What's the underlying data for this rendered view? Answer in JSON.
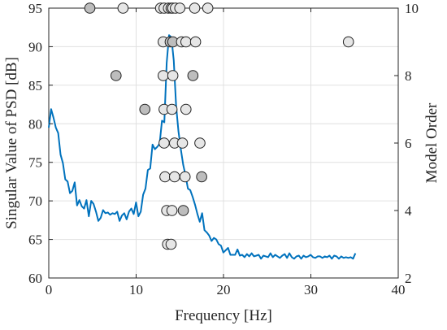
{
  "chart_data": {
    "type": "line",
    "xlabel": "Frequency [Hz]",
    "ylabel": "Singular Value of PSD [dB]",
    "y2label": "Model Order",
    "xlim": [
      0,
      40
    ],
    "ylim": [
      60,
      95
    ],
    "y2lim": [
      2,
      10
    ],
    "xticks": [
      0,
      10,
      20,
      30,
      40
    ],
    "yticks": [
      60,
      65,
      70,
      75,
      80,
      85,
      90,
      95
    ],
    "y2ticks": [
      2,
      4,
      6,
      8,
      10
    ],
    "grid": true,
    "colors": {
      "line": "#0072BD",
      "marker_light": "#E6E6E6",
      "marker_dark": "#BDBDBD",
      "axis": "#262626",
      "grid": "#E0E0E0"
    },
    "series": [
      {
        "axis": "left",
        "x": [
          0,
          0.27,
          0.54,
          0.81,
          1.08,
          1.35,
          1.62,
          1.89,
          2.16,
          2.43,
          2.7,
          2.97,
          3.24,
          3.51,
          3.78,
          4.05,
          4.32,
          4.59,
          4.86,
          5.13,
          5.4,
          5.67,
          5.94,
          6.21,
          6.48,
          6.75,
          7.02,
          7.29,
          7.56,
          7.83,
          8.1,
          8.37,
          8.64,
          8.91,
          9.18,
          9.45,
          9.72,
          9.99,
          10.26,
          10.53,
          10.8,
          11.07,
          11.34,
          11.61,
          11.88,
          12.15,
          12.42,
          12.69,
          12.96,
          13.23,
          13.5,
          13.77,
          14.04,
          14.31,
          14.58,
          14.85,
          15.12,
          15.39,
          15.66,
          15.93,
          16.2,
          16.47,
          16.74,
          17.01,
          17.28,
          17.55,
          17.82,
          18.09,
          18.36,
          18.63,
          18.9,
          19.17,
          19.44,
          19.71,
          19.98,
          20.25,
          20.52,
          20.79,
          21.06,
          21.33,
          21.6,
          21.87,
          22.14,
          22.41,
          22.68,
          22.95,
          23.22,
          23.49,
          23.76,
          24.03,
          24.3,
          24.57,
          24.84,
          25.11,
          25.38,
          25.65,
          25.92,
          26.19,
          26.46,
          26.73,
          27,
          27.27,
          27.54,
          27.81,
          28.08,
          28.35,
          28.62,
          28.89,
          29.16,
          29.43,
          29.7,
          29.97,
          30.24,
          30.51,
          30.78,
          31.05,
          31.32,
          31.59,
          31.86,
          32.13,
          32.4,
          32.67,
          32.94,
          33.21,
          33.48,
          33.75,
          34.02,
          34.29,
          34.56,
          34.83,
          35.1
        ],
        "y": [
          79.5,
          81.9,
          80.8,
          79.5,
          78.8,
          76.0,
          74.9,
          72.8,
          72.5,
          71.0,
          71.3,
          72.4,
          69.4,
          70.1,
          69.3,
          69.0,
          70.1,
          68.0,
          70.0,
          69.6,
          68.6,
          67.4,
          67.8,
          68.8,
          68.4,
          68.5,
          68.2,
          68.4,
          68.3,
          68.6,
          67.4,
          68.1,
          68.4,
          67.6,
          68.6,
          69.0,
          68.3,
          69.8,
          68.0,
          68.6,
          70.8,
          71.6,
          74.0,
          74.2,
          77.3,
          76.7,
          77.0,
          77.4,
          80.4,
          80.2,
          87.9,
          91.5,
          91.2,
          88.2,
          82.3,
          79.0,
          76.7,
          74.7,
          73.3,
          71.6,
          71.4,
          70.5,
          69.5,
          68.3,
          67.3,
          68.4,
          66.2,
          65.9,
          65.5,
          64.8,
          65.2,
          65.0,
          64.4,
          64.2,
          63.3,
          63.6,
          63.9,
          63.0,
          63.0,
          63.0,
          63.7,
          62.9,
          63.0,
          62.7,
          63.1,
          62.8,
          63.2,
          62.8,
          62.9,
          63.0,
          62.5,
          62.9,
          62.8,
          62.7,
          63.2,
          62.7,
          63.0,
          62.8,
          62.6,
          62.9,
          63.1,
          62.6,
          63.2,
          62.7,
          62.5,
          62.8,
          62.9,
          62.5,
          62.9,
          62.7,
          62.8,
          63.0,
          62.7,
          62.6,
          62.8,
          62.8,
          62.6,
          62.8,
          62.7,
          62.9,
          62.5,
          62.9,
          62.8,
          62.5,
          62.8,
          62.6,
          62.7,
          62.6,
          62.7,
          62.5,
          63.2
        ]
      },
      {
        "axis": "right",
        "markers": [
          [
            4.7,
            10,
            "dark"
          ],
          [
            8.5,
            10,
            "light"
          ],
          [
            12.8,
            10,
            "light"
          ],
          [
            13.2,
            10,
            "light"
          ],
          [
            13.7,
            10,
            "light"
          ],
          [
            14.0,
            10,
            "dark"
          ],
          [
            14.2,
            10,
            "light"
          ],
          [
            14.5,
            10,
            "light"
          ],
          [
            15.0,
            10,
            "light"
          ],
          [
            16.7,
            10,
            "light"
          ],
          [
            18.2,
            10,
            "light"
          ],
          [
            13.1,
            9,
            "light"
          ],
          [
            13.9,
            9,
            "dark"
          ],
          [
            14.2,
            9,
            "dark"
          ],
          [
            15.2,
            9,
            "light"
          ],
          [
            15.7,
            9,
            "light"
          ],
          [
            16.8,
            9,
            "light"
          ],
          [
            34.3,
            9,
            "light"
          ],
          [
            7.7,
            8,
            "dark"
          ],
          [
            13.1,
            8,
            "light"
          ],
          [
            14.2,
            8,
            "light"
          ],
          [
            16.5,
            8,
            "dark"
          ],
          [
            11.0,
            7,
            "dark"
          ],
          [
            13.2,
            7,
            "light"
          ],
          [
            14.1,
            7,
            "light"
          ],
          [
            15.7,
            7,
            "light"
          ],
          [
            13.2,
            6,
            "light"
          ],
          [
            14.4,
            6,
            "light"
          ],
          [
            15.3,
            6,
            "light"
          ],
          [
            17.3,
            6,
            "light"
          ],
          [
            13.3,
            5,
            "light"
          ],
          [
            14.4,
            5,
            "light"
          ],
          [
            15.6,
            5,
            "light"
          ],
          [
            17.5,
            5,
            "dark"
          ],
          [
            13.5,
            4,
            "light"
          ],
          [
            14.1,
            4,
            "light"
          ],
          [
            15.4,
            4,
            "dark"
          ],
          [
            13.6,
            3,
            "light"
          ],
          [
            14.0,
            3,
            "light"
          ]
        ]
      }
    ]
  }
}
